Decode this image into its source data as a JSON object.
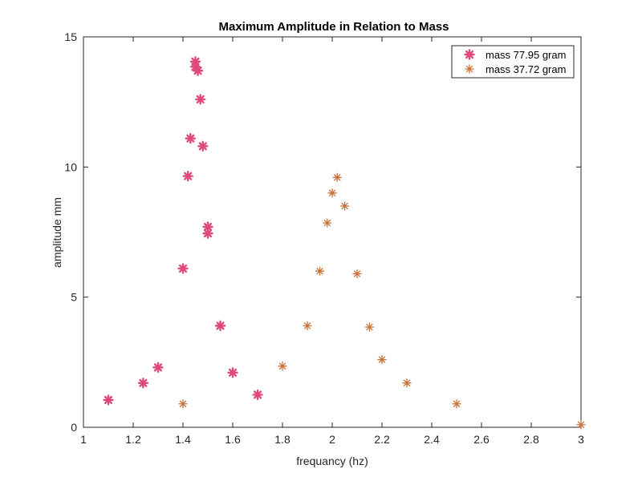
{
  "chart_data": {
    "type": "scatter",
    "title": "Maximum Amplitude in Relation to Mass",
    "xlabel": "frequancy (hz)",
    "ylabel": "amplitude mm",
    "xlim": [
      1,
      3
    ],
    "ylim": [
      0,
      15
    ],
    "xticks": [
      "1",
      "1.2",
      "1.4",
      "1.6",
      "1.8",
      "2",
      "2.2",
      "2.4",
      "2.6",
      "2.8",
      "3"
    ],
    "yticks": [
      "0",
      "5",
      "10",
      "15"
    ],
    "grid": false,
    "legend_position": "top-right",
    "series": [
      {
        "name": "mass 77.95 gram",
        "marker": "asterisk-bold",
        "color": "#e0497a",
        "points": [
          {
            "x": 1.1,
            "y": 1.05
          },
          {
            "x": 1.24,
            "y": 1.7
          },
          {
            "x": 1.3,
            "y": 2.3
          },
          {
            "x": 1.4,
            "y": 6.1
          },
          {
            "x": 1.42,
            "y": 9.65
          },
          {
            "x": 1.43,
            "y": 11.1
          },
          {
            "x": 1.45,
            "y": 13.85
          },
          {
            "x": 1.45,
            "y": 14.05
          },
          {
            "x": 1.46,
            "y": 13.7
          },
          {
            "x": 1.47,
            "y": 12.6
          },
          {
            "x": 1.48,
            "y": 10.8
          },
          {
            "x": 1.5,
            "y": 7.7
          },
          {
            "x": 1.5,
            "y": 7.45
          },
          {
            "x": 1.55,
            "y": 3.9
          },
          {
            "x": 1.6,
            "y": 2.1
          },
          {
            "x": 1.7,
            "y": 1.25
          }
        ]
      },
      {
        "name": "mass 37.72 gram",
        "marker": "asterisk",
        "color": "#c8713a",
        "points": [
          {
            "x": 1.4,
            "y": 0.9
          },
          {
            "x": 1.8,
            "y": 2.35
          },
          {
            "x": 1.9,
            "y": 3.9
          },
          {
            "x": 1.95,
            "y": 6.0
          },
          {
            "x": 1.98,
            "y": 7.85
          },
          {
            "x": 2.0,
            "y": 9.0
          },
          {
            "x": 2.02,
            "y": 9.6
          },
          {
            "x": 2.05,
            "y": 8.5
          },
          {
            "x": 2.1,
            "y": 5.9
          },
          {
            "x": 2.15,
            "y": 3.85
          },
          {
            "x": 2.2,
            "y": 2.6
          },
          {
            "x": 2.3,
            "y": 1.7
          },
          {
            "x": 2.5,
            "y": 0.9
          },
          {
            "x": 3.0,
            "y": 0.1
          }
        ]
      }
    ]
  }
}
